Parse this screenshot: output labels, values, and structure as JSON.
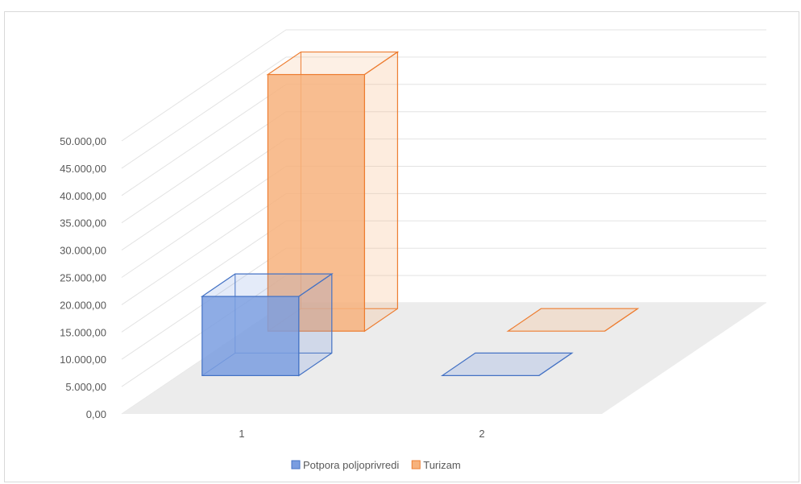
{
  "chart_data": {
    "type": "bar",
    "title": "",
    "xlabel": "",
    "ylabel": "",
    "categories": [
      "1",
      "2"
    ],
    "series": [
      {
        "name": "Potpora poljoprivredi",
        "values": [
          14500,
          0
        ],
        "color": "#4472C4",
        "fill": "#7A9DE0"
      },
      {
        "name": "Turizam",
        "values": [
          47000,
          0
        ],
        "color": "#ED7D31",
        "fill": "#F7B27C"
      }
    ],
    "ylim": [
      0,
      50000
    ],
    "yticks": [
      "0,00",
      "5.000,00",
      "10.000,00",
      "15.000,00",
      "20.000,00",
      "25.000,00",
      "30.000,00",
      "35.000,00",
      "40.000,00",
      "45.000,00",
      "50.000,00"
    ],
    "grid": true,
    "legend": "bottom",
    "floor_color": "#ECECEC"
  }
}
